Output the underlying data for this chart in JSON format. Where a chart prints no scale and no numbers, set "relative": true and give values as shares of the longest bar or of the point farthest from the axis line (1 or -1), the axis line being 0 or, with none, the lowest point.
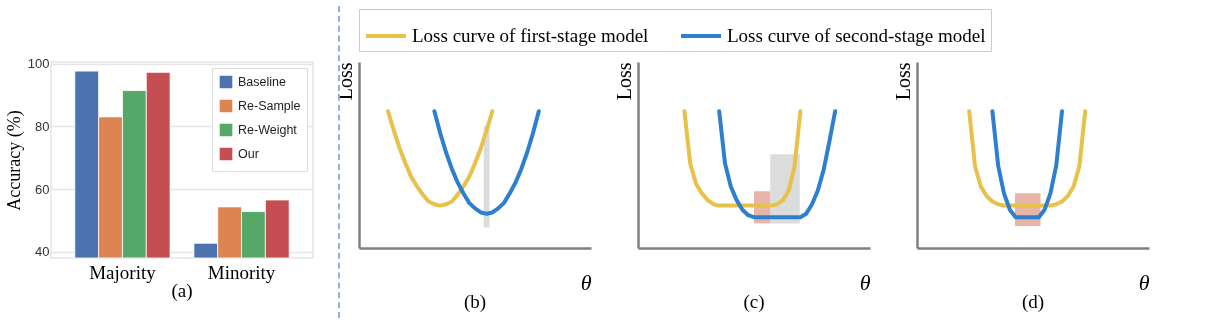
{
  "chart_data": [
    {
      "type": "bar",
      "title": "(a)",
      "ylabel": "Accuracy (%)",
      "categories": [
        "Majority",
        "Minority"
      ],
      "ylim": [
        38,
        100.5
      ],
      "yticks": [
        40,
        60,
        80,
        100
      ],
      "grid": "y",
      "legend": "top right",
      "series": [
        {
          "name": "Baseline",
          "color": "#4c72b0",
          "values": [
            97.6,
            42.7
          ]
        },
        {
          "name": "Re-Sample",
          "color": "#dd8452",
          "values": [
            83,
            54.3
          ]
        },
        {
          "name": "Re-Weight",
          "color": "#55a868",
          "values": [
            91.4,
            52.8
          ]
        },
        {
          "name": "Our",
          "color": "#c44e52",
          "values": [
            97.2,
            56.5
          ]
        }
      ]
    },
    {
      "type": "line",
      "title": "(b)",
      "xlabel": "θ",
      "ylabel": "Loss",
      "relative": true,
      "legend": "top",
      "categories": [
        null,
        null,
        null,
        null,
        null,
        null,
        null,
        null,
        null,
        null,
        null,
        null,
        null,
        null,
        null,
        null,
        null,
        null,
        null,
        null,
        null,
        null,
        null,
        null,
        null,
        null,
        null,
        null,
        null,
        null,
        null,
        null,
        null,
        null,
        null,
        null,
        null,
        null,
        null,
        null,
        null
      ],
      "series": [
        {
          "name": "Loss curve of first-stage model",
          "color": "#e8c14a",
          "values": [
            null,
            null,
            null,
            null,
            null,
            1.0,
            0.86,
            0.73,
            0.62,
            0.52,
            0.45,
            0.39,
            0.34,
            0.32,
            0.31,
            0.32,
            0.34,
            0.39,
            0.45,
            0.52,
            0.62,
            0.73,
            0.86,
            1.0,
            null,
            null,
            null,
            null,
            null,
            null,
            null,
            null,
            null,
            null,
            null,
            null,
            null,
            null,
            null,
            null,
            null
          ]
        },
        {
          "name": "Loss curve of second-stage model",
          "color": "#2f7fcf",
          "values": [
            null,
            null,
            null,
            null,
            null,
            null,
            null,
            null,
            null,
            null,
            null,
            null,
            null,
            1.0,
            0.84,
            0.7,
            0.58,
            0.48,
            0.4,
            0.33,
            0.29,
            0.26,
            0.25,
            0.26,
            0.29,
            0.33,
            0.4,
            0.48,
            0.58,
            0.7,
            0.84,
            1.0,
            null,
            null,
            null,
            null,
            null,
            null,
            null,
            null,
            null
          ]
        }
      ]
    },
    {
      "type": "line",
      "title": "(c)",
      "xlabel": "θ",
      "ylabel": "Loss",
      "relative": true,
      "categories": [
        null,
        null,
        null,
        null,
        null,
        null,
        null,
        null,
        null,
        null,
        null,
        null,
        null,
        null,
        null,
        null,
        null,
        null,
        null,
        null,
        null,
        null,
        null,
        null,
        null,
        null,
        null,
        null,
        null,
        null,
        null,
        null,
        null,
        null,
        null,
        null,
        null,
        null,
        null,
        null,
        null
      ],
      "series": [
        {
          "color": "#e8c14a",
          "values": [
            null,
            null,
            null,
            null,
            null,
            null,
            null,
            null,
            1.0,
            0.62,
            0.47,
            0.4,
            0.35,
            0.32,
            0.31,
            0.31,
            0.31,
            0.31,
            0.31,
            0.31,
            0.31,
            0.31,
            0.31,
            0.31,
            0.32,
            0.35,
            0.42,
            0.6,
            1.0,
            null,
            null,
            null,
            null,
            null,
            null,
            null,
            null,
            null,
            null,
            null,
            null
          ]
        },
        {
          "color": "#2f7fcf",
          "values": [
            null,
            null,
            null,
            null,
            null,
            null,
            null,
            null,
            null,
            null,
            null,
            null,
            null,
            null,
            1.0,
            0.62,
            0.45,
            0.35,
            0.28,
            0.24,
            0.225,
            0.225,
            0.225,
            0.225,
            0.225,
            0.225,
            0.225,
            0.225,
            0.225,
            0.25,
            0.32,
            0.42,
            0.57,
            0.78,
            1.0,
            null,
            null,
            null,
            null,
            null,
            null
          ]
        }
      ]
    },
    {
      "type": "line",
      "title": "(d)",
      "xlabel": "θ",
      "ylabel": "Loss",
      "relative": true,
      "categories": [
        null,
        null,
        null,
        null,
        null,
        null,
        null,
        null,
        null,
        null,
        null,
        null,
        null,
        null,
        null,
        null,
        null,
        null,
        null,
        null,
        null,
        null,
        null,
        null,
        null,
        null,
        null,
        null,
        null,
        null,
        null,
        null,
        null,
        null,
        null,
        null,
        null,
        null,
        null,
        null,
        null
      ],
      "series": [
        {
          "color": "#e8c14a",
          "values": [
            null,
            null,
            null,
            null,
            null,
            null,
            null,
            null,
            null,
            1.0,
            0.6,
            0.45,
            0.38,
            0.34,
            0.32,
            0.31,
            0.31,
            0.31,
            0.31,
            0.31,
            0.31,
            0.31,
            0.31,
            0.31,
            0.32,
            0.34,
            0.38,
            0.45,
            0.6,
            1.0,
            null,
            null,
            null,
            null,
            null,
            null,
            null,
            null,
            null,
            null,
            null
          ]
        },
        {
          "color": "#2f7fcf",
          "values": [
            null,
            null,
            null,
            null,
            null,
            null,
            null,
            null,
            null,
            null,
            null,
            null,
            null,
            1.0,
            0.6,
            0.4,
            0.28,
            0.225,
            0.225,
            0.225,
            0.225,
            0.225,
            0.28,
            0.4,
            0.6,
            1.0,
            null,
            null,
            null,
            null,
            null,
            null,
            null,
            null,
            null,
            null,
            null,
            null,
            null,
            null,
            null
          ]
        }
      ]
    }
  ]
}
